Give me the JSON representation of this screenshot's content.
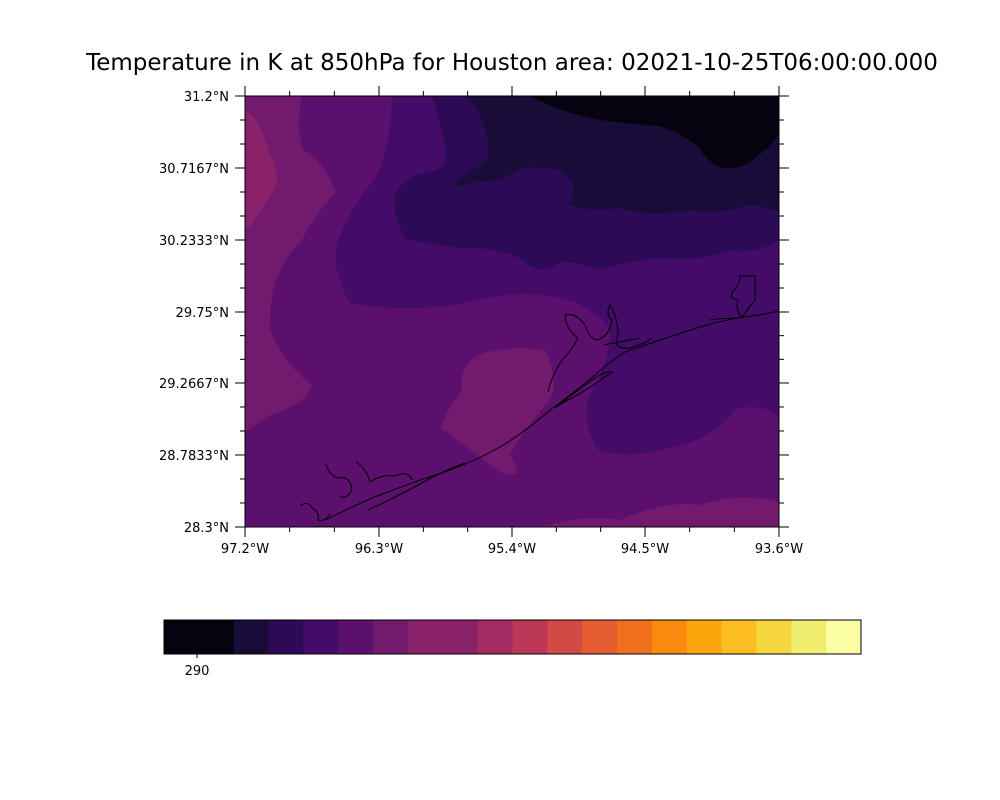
{
  "title": "Temperature in K at 850hPa for Houston area: 02021-10-25T06:00:00.000",
  "map": {
    "lat_labels": [
      "31.2°N",
      "30.7167°N",
      "30.2333°N",
      "29.75°N",
      "29.2667°N",
      "28.7833°N",
      "28.3°N"
    ],
    "lon_labels": [
      "97.2°W",
      "96.3°W",
      "95.4°W",
      "94.5°W",
      "93.6°W"
    ],
    "colormap": "inferno",
    "colors": {
      "c0": "#04030f",
      "c1": "#1a0c38",
      "c2": "#2d0a55",
      "c3": "#450b68",
      "c4": "#5b106e",
      "c5": "#711a6e",
      "c6": "#8a226a",
      "coastline": "#000000"
    }
  },
  "colorbar": {
    "tick_label": "290",
    "colors": [
      "#04030f",
      "#04030f",
      "#1a0c38",
      "#2d0a55",
      "#450b68",
      "#5b106e",
      "#711a6e",
      "#8a226a",
      "#8a226a",
      "#a32b61",
      "#bb3755",
      "#d14a43",
      "#e55c30",
      "#f0701f",
      "#f98a0d",
      "#fca60c",
      "#fbbd22",
      "#f5d63f",
      "#f0ee6e",
      "#fcfea4"
    ]
  }
}
